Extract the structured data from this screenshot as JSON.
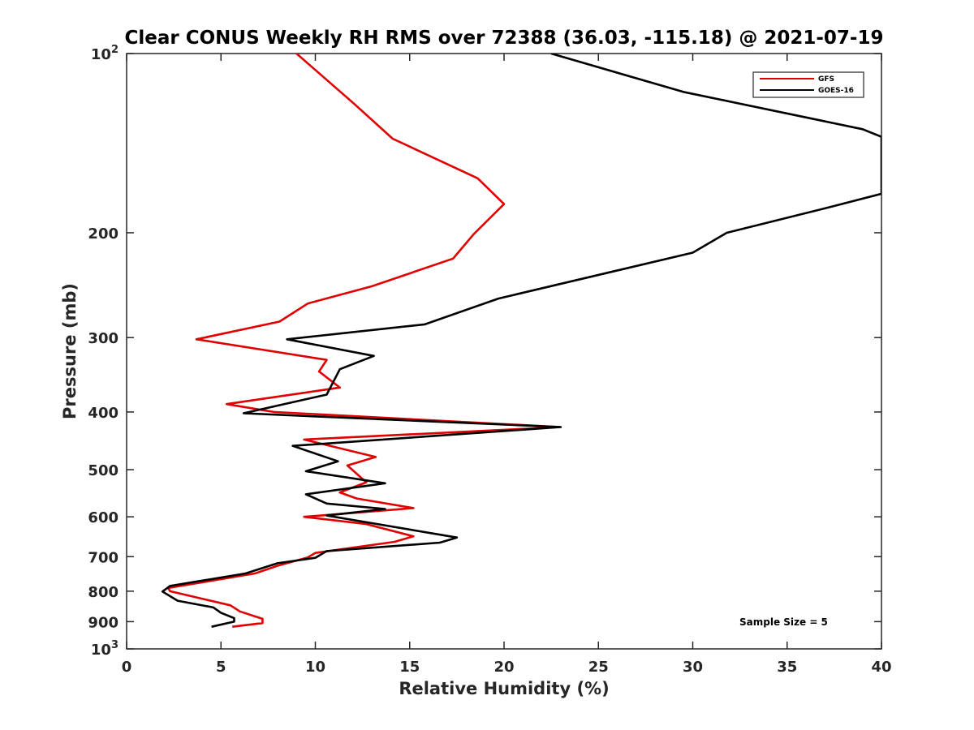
{
  "chart_data": {
    "type": "line",
    "title": "Clear CONUS Weekly RH RMS over 72388 (36.03, -115.18) @ 2021-07-19",
    "xlabel": "Relative Humidity (%)",
    "ylabel": "Pressure (mb)",
    "xlim": [
      0,
      40
    ],
    "ylim": [
      100,
      1000
    ],
    "y_scale": "log",
    "y_reversed": true,
    "grid": false,
    "legend_position": "top-right",
    "x_ticks": [
      0,
      5,
      10,
      15,
      20,
      25,
      30,
      35,
      40
    ],
    "x_tick_labels": [
      "0",
      "5",
      "10",
      "15",
      "20",
      "25",
      "30",
      "35",
      "40"
    ],
    "y_ticks": [
      100,
      200,
      300,
      400,
      500,
      600,
      700,
      800,
      900,
      1000
    ],
    "y_tick_labels": [
      {
        "base": "10",
        "exp": "2"
      },
      {
        "base": "200",
        "exp": ""
      },
      {
        "base": "300",
        "exp": ""
      },
      {
        "base": "400",
        "exp": ""
      },
      {
        "base": "500",
        "exp": ""
      },
      {
        "base": "600",
        "exp": ""
      },
      {
        "base": "700",
        "exp": ""
      },
      {
        "base": "800",
        "exp": ""
      },
      {
        "base": "900",
        "exp": ""
      },
      {
        "base": "10",
        "exp": "3"
      }
    ],
    "annotation": "Sample Size = 5",
    "series": [
      {
        "name": "GFS",
        "color": "#e00000",
        "points": [
          [
            9.0,
            100
          ],
          [
            12.0,
            121
          ],
          [
            14.1,
            139
          ],
          [
            18.6,
            162
          ],
          [
            20.0,
            179
          ],
          [
            18.4,
            201
          ],
          [
            17.3,
            221
          ],
          [
            13.0,
            246
          ],
          [
            9.6,
            263
          ],
          [
            8.1,
            282
          ],
          [
            3.7,
            302
          ],
          [
            10.6,
            327
          ],
          [
            10.2,
            342
          ],
          [
            11.3,
            364
          ],
          [
            5.3,
            388
          ],
          [
            7.8,
            400
          ],
          [
            23.0,
            424
          ],
          [
            9.4,
            445
          ],
          [
            13.2,
            476
          ],
          [
            11.7,
            492
          ],
          [
            12.7,
            525
          ],
          [
            11.3,
            546
          ],
          [
            12.2,
            559
          ],
          [
            15.2,
            580
          ],
          [
            9.4,
            600
          ],
          [
            12.7,
            617
          ],
          [
            15.2,
            647
          ],
          [
            14.2,
            661
          ],
          [
            10.0,
            690
          ],
          [
            9.6,
            702
          ],
          [
            8.0,
            725
          ],
          [
            6.8,
            747
          ],
          [
            2.2,
            790
          ],
          [
            2.3,
            800
          ],
          [
            5.5,
            845
          ],
          [
            6.0,
            865
          ],
          [
            7.2,
            890
          ],
          [
            7.2,
            905
          ],
          [
            5.6,
            918
          ]
        ]
      },
      {
        "name": "GOES-16",
        "color": "#000000",
        "points": [
          [
            22.5,
            100
          ],
          [
            29.5,
            116
          ],
          [
            39.0,
            134
          ],
          [
            40.0,
            138
          ],
          [
            40.0,
            172
          ],
          [
            37.0,
            182
          ],
          [
            31.8,
            200
          ],
          [
            30.0,
            216
          ],
          [
            19.7,
            258
          ],
          [
            15.8,
            285
          ],
          [
            8.5,
            302
          ],
          [
            13.1,
            322
          ],
          [
            11.3,
            339
          ],
          [
            10.6,
            374
          ],
          [
            6.2,
            402
          ],
          [
            23.0,
            424
          ],
          [
            8.8,
            456
          ],
          [
            11.2,
            484
          ],
          [
            9.5,
            503
          ],
          [
            13.7,
            527
          ],
          [
            9.5,
            550
          ],
          [
            10.6,
            570
          ],
          [
            13.7,
            582
          ],
          [
            10.6,
            597
          ],
          [
            17.5,
            650
          ],
          [
            16.6,
            663
          ],
          [
            10.6,
            685
          ],
          [
            10.0,
            703
          ],
          [
            8.0,
            718
          ],
          [
            6.3,
            747
          ],
          [
            2.3,
            784
          ],
          [
            1.9,
            801
          ],
          [
            2.7,
            830
          ],
          [
            4.6,
            852
          ],
          [
            5.0,
            870
          ],
          [
            5.7,
            888
          ],
          [
            5.7,
            900
          ],
          [
            4.5,
            918
          ]
        ]
      }
    ]
  }
}
